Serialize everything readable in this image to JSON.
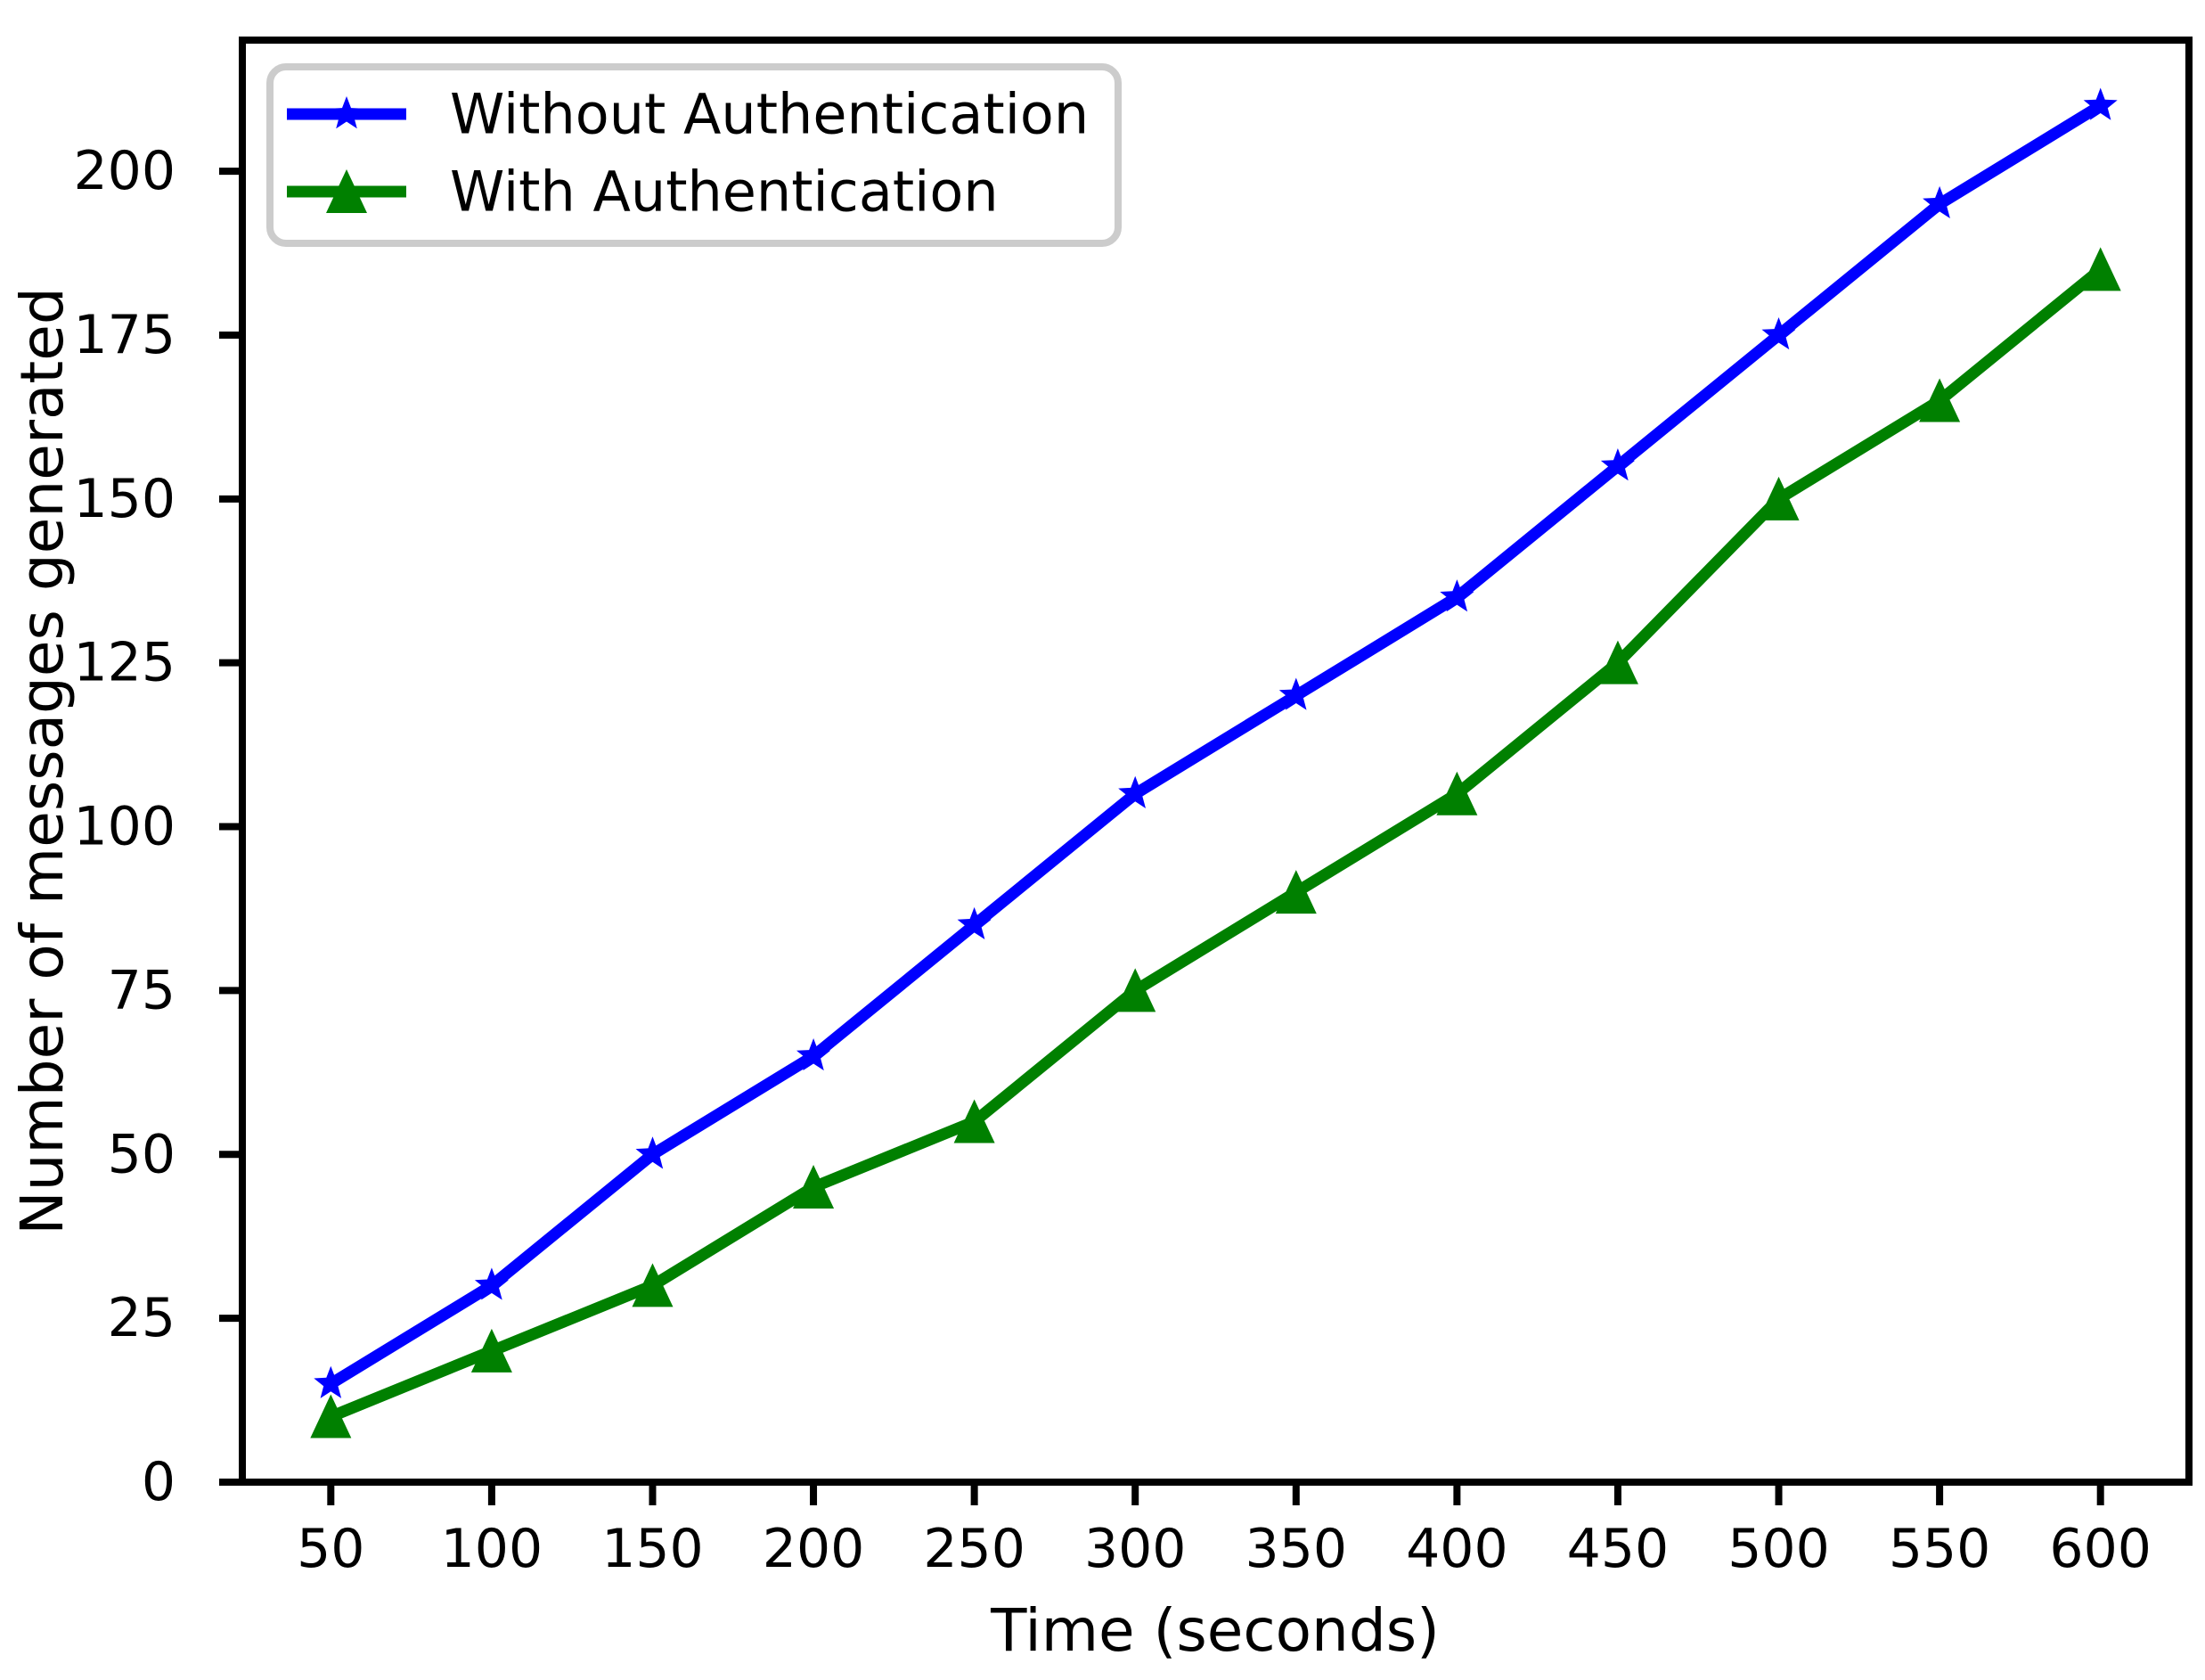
{
  "chart_data": {
    "type": "line",
    "title": "",
    "xlabel": "Time (seconds)",
    "ylabel": "Number of messages generated",
    "x": [
      50,
      100,
      150,
      200,
      250,
      300,
      350,
      400,
      450,
      500,
      550,
      600
    ],
    "series": [
      {
        "name": "Without Authentication",
        "marker": "star",
        "color": "#0000FF",
        "values": [
          15,
          30,
          50,
          65,
          85,
          105,
          120,
          135,
          155,
          175,
          195,
          210
        ]
      },
      {
        "name": "With Authentication",
        "marker": "triangle-up",
        "color": "#008000",
        "values": [
          10,
          20,
          30,
          45,
          55,
          75,
          90,
          105,
          125,
          150,
          165,
          185
        ]
      }
    ],
    "x_ticks": [
      50,
      100,
      150,
      200,
      250,
      300,
      350,
      400,
      450,
      500,
      550,
      600
    ],
    "y_ticks": [
      0,
      25,
      50,
      75,
      100,
      125,
      150,
      175,
      200
    ],
    "xlim": [
      22.5,
      627.5
    ],
    "ylim": [
      0,
      220
    ],
    "grid": false,
    "legend_position": "upper-left",
    "axis_color": "#000000",
    "legend_border_color": "#CCCCCC",
    "background_color": "#FFFFFF"
  }
}
